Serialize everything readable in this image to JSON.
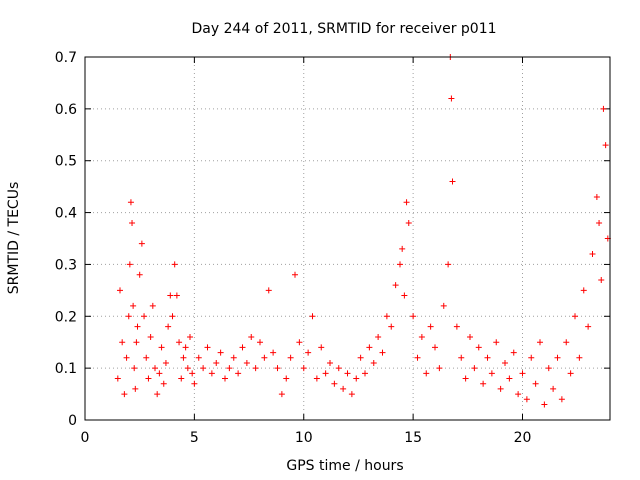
{
  "chart_data": {
    "type": "scatter",
    "title": "Day 244 of 2011, SRMTID for receiver p011",
    "xlabel": "GPS time / hours",
    "ylabel": "SRMTID / TECUs",
    "xlim": [
      0,
      24
    ],
    "ylim": [
      0,
      0.7
    ],
    "xticks": [
      0,
      5,
      10,
      15,
      20
    ],
    "yticks": [
      0,
      0.1,
      0.2,
      0.3,
      0.4,
      0.5,
      0.6,
      0.7
    ],
    "xtick_labels": [
      "0",
      "5",
      "10",
      "15",
      "20"
    ],
    "ytick_labels": [
      "0",
      "0.1",
      "0.2",
      "0.3",
      "0.4",
      "0.5",
      "0.6",
      "0.7"
    ],
    "grid": true,
    "marker": "+",
    "color": "#ff0000",
    "series": [
      {
        "name": "SRMTID",
        "x": [
          1.5,
          1.6,
          1.7,
          1.8,
          1.9,
          2.0,
          2.05,
          2.1,
          2.15,
          2.2,
          2.25,
          2.3,
          2.35,
          2.4,
          2.5,
          2.6,
          2.7,
          2.8,
          2.9,
          3.0,
          3.1,
          3.2,
          3.3,
          3.4,
          3.5,
          3.6,
          3.7,
          3.8,
          3.9,
          4.0,
          4.1,
          4.2,
          4.3,
          4.4,
          4.5,
          4.6,
          4.7,
          4.8,
          4.9,
          5.0,
          5.2,
          5.4,
          5.6,
          5.8,
          6.0,
          6.2,
          6.4,
          6.6,
          6.8,
          7.0,
          7.2,
          7.4,
          7.6,
          7.8,
          8.0,
          8.2,
          8.4,
          8.6,
          8.8,
          9.0,
          9.2,
          9.4,
          9.6,
          9.8,
          10.0,
          10.2,
          10.4,
          10.6,
          10.8,
          11.0,
          11.2,
          11.4,
          11.6,
          11.8,
          12.0,
          12.2,
          12.4,
          12.6,
          12.8,
          13.0,
          13.2,
          13.4,
          13.6,
          13.8,
          14.0,
          14.2,
          14.4,
          14.5,
          14.6,
          14.7,
          14.8,
          15.0,
          15.2,
          15.4,
          15.6,
          15.8,
          16.0,
          16.2,
          16.4,
          16.6,
          16.7,
          16.75,
          16.8,
          17.0,
          17.2,
          17.4,
          17.6,
          17.8,
          18.0,
          18.2,
          18.4,
          18.6,
          18.8,
          19.0,
          19.2,
          19.4,
          19.6,
          19.8,
          20.0,
          20.2,
          20.4,
          20.6,
          20.8,
          21.0,
          21.2,
          21.4,
          21.6,
          21.8,
          22.0,
          22.2,
          22.4,
          22.6,
          22.8,
          23.0,
          23.2,
          23.4,
          23.5,
          23.6,
          23.7,
          23.8,
          23.9
        ],
        "y": [
          0.08,
          0.25,
          0.15,
          0.05,
          0.12,
          0.2,
          0.3,
          0.42,
          0.38,
          0.22,
          0.1,
          0.06,
          0.15,
          0.18,
          0.28,
          0.34,
          0.2,
          0.12,
          0.08,
          0.16,
          0.22,
          0.1,
          0.05,
          0.09,
          0.14,
          0.07,
          0.11,
          0.18,
          0.24,
          0.2,
          0.3,
          0.24,
          0.15,
          0.08,
          0.12,
          0.14,
          0.1,
          0.16,
          0.09,
          0.07,
          0.12,
          0.1,
          0.14,
          0.09,
          0.11,
          0.13,
          0.08,
          0.1,
          0.12,
          0.09,
          0.14,
          0.11,
          0.16,
          0.1,
          0.15,
          0.12,
          0.25,
          0.13,
          0.1,
          0.05,
          0.08,
          0.12,
          0.28,
          0.15,
          0.1,
          0.13,
          0.2,
          0.08,
          0.14,
          0.09,
          0.11,
          0.07,
          0.1,
          0.06,
          0.09,
          0.05,
          0.08,
          0.12,
          0.09,
          0.14,
          0.11,
          0.16,
          0.13,
          0.2,
          0.18,
          0.26,
          0.3,
          0.33,
          0.24,
          0.42,
          0.38,
          0.2,
          0.12,
          0.16,
          0.09,
          0.18,
          0.14,
          0.1,
          0.22,
          0.3,
          0.7,
          0.62,
          0.46,
          0.18,
          0.12,
          0.08,
          0.16,
          0.1,
          0.14,
          0.07,
          0.12,
          0.09,
          0.15,
          0.06,
          0.11,
          0.08,
          0.13,
          0.05,
          0.09,
          0.04,
          0.12,
          0.07,
          0.15,
          0.03,
          0.1,
          0.06,
          0.12,
          0.04,
          0.15,
          0.09,
          0.2,
          0.12,
          0.25,
          0.18,
          0.32,
          0.43,
          0.38,
          0.27,
          0.6,
          0.53,
          0.35
        ]
      }
    ]
  }
}
